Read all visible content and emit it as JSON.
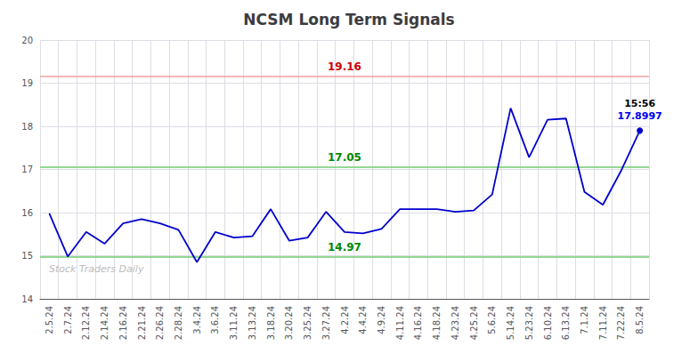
{
  "chart_data": {
    "type": "line",
    "title": "NCSM Long Term Signals",
    "categories": [
      "2.5.24",
      "2.7.24",
      "2.12.24",
      "2.14.24",
      "2.16.24",
      "2.21.24",
      "2.26.24",
      "2.28.24",
      "3.4.24",
      "3.6.24",
      "3.11.24",
      "3.13.24",
      "3.18.24",
      "3.20.24",
      "3.25.24",
      "3.27.24",
      "4.2.24",
      "4.4.24",
      "4.9.24",
      "4.11.24",
      "4.16.24",
      "4.18.24",
      "4.23.24",
      "4.25.24",
      "5.6.24",
      "5.14.24",
      "5.23.24",
      "6.10.24",
      "6.13.24",
      "7.1.24",
      "7.11.24",
      "7.22.24",
      "8.5.24"
    ],
    "values": [
      15.98,
      14.98,
      15.55,
      15.28,
      15.75,
      15.85,
      15.75,
      15.6,
      14.85,
      15.55,
      15.42,
      15.45,
      16.08,
      15.35,
      15.42,
      16.02,
      15.55,
      15.52,
      15.62,
      16.08,
      16.08,
      16.08,
      16.02,
      16.05,
      16.42,
      18.42,
      17.28,
      18.15,
      18.18,
      16.48,
      16.18,
      16.98,
      17.8997
    ],
    "color": "#0000cc",
    "hlines": [
      {
        "value": 19.16,
        "label": "19.16",
        "color": "#f0a0a0",
        "label_color": "#cc0000"
      },
      {
        "value": 17.05,
        "label": "17.05",
        "color": "#70cc70",
        "label_color": "#008800"
      },
      {
        "value": 14.97,
        "label": "14.97",
        "color": "#70cc70",
        "label_color": "#008800"
      }
    ],
    "last_point_label": "15:56",
    "last_value_label": "17.8997",
    "last_value_color": "#0000ee",
    "watermark": "Stock Traders Daily",
    "watermark_color": "#bbbbbb",
    "ylim": [
      14,
      20
    ],
    "yticks": [
      14,
      15,
      16,
      17,
      18,
      19,
      20
    ],
    "grid": true
  }
}
